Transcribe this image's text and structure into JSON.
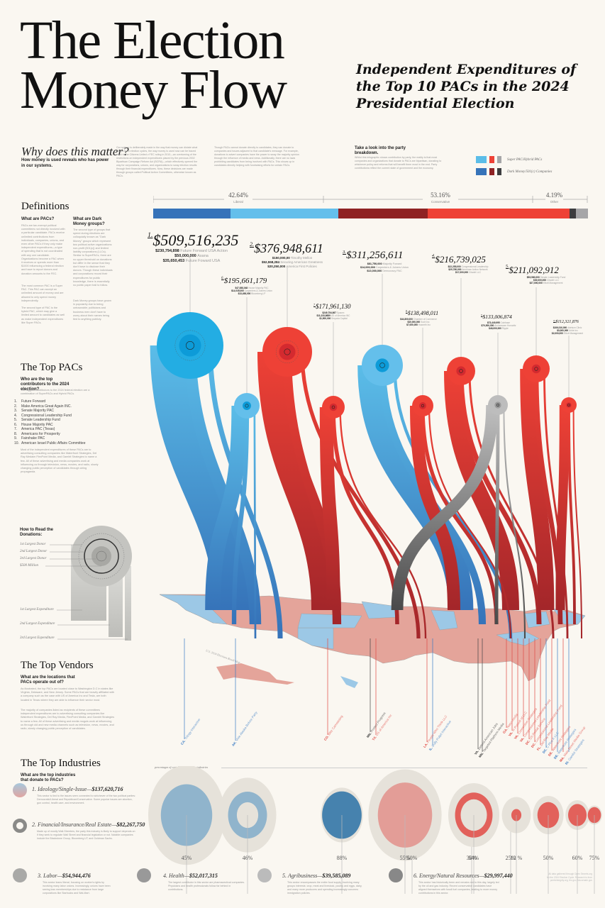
{
  "header": {
    "title": "The Election Money Flow",
    "subtitle": "Independent Expenditures of the Top 10 PACs in the 2024 Presidential Election"
  },
  "intro": {
    "heading": "Why does this matter?",
    "subheading": "How money is used reveals who has power in our systems.",
    "para1": "Our system is deliberately made in the way that money can dictate what happens. In election cycles, the way money is used now can be traced back to the Citizens United v FEC ruling in 2010—an overturning of the restrictions on independent expenditures placed by the previous 2002 Bipartisan Campaign Reform Act (BCRA)—which effectively opened the way for corporations, unions, and organizations to sway election results through their financial expenditures. Now, these decisions are made through groups called Political Action Committees, otherwise known as PACs.",
    "para2": "Though PACs cannot donate directly to candidates, they can donate to companies and issues adjacent to that candidate's message. For example, donations to advert companies have the power to sway the majority opinion through the influence of media and news. Additionally, there are no laws prohibiting candidates from being involved with PACs. This shows up in candidates directly helping with fundraising efforts for certain PACs."
  },
  "breakdown": {
    "title": "Take a look into the party breakdown.",
    "text": "Whilst this infographic shows contribution by party, the reality is that most companies and organizations that donate to PACs are bipartisan, donating to whichever policy and reforms that will benefit them most in the end. Party contributions reflect the current state of government and the economy.",
    "legend": [
      {
        "label": "Super PAC/Hybrid PACs",
        "colors": [
          "#5bbde8",
          "#ee4136",
          "#a6a6a8"
        ]
      },
      {
        "label": "Dark Money/501(c) Companies",
        "colors": [
          "#3673b9",
          "#8f2224",
          "#3d3d3f"
        ]
      }
    ]
  },
  "party_split": {
    "segments": [
      {
        "label": "Liberal",
        "percent": "42.64%",
        "value": 42.64,
        "parts": [
          {
            "color": "#3673b9",
            "share": 17.8
          },
          {
            "color": "#64bfeb",
            "share": 24.84
          }
        ]
      },
      {
        "label": "Conservative",
        "percent": "53.16%",
        "value": 53.16,
        "parts": [
          {
            "color": "#8f2224",
            "share": 20.5
          },
          {
            "color": "#ee4136",
            "share": 32.66
          }
        ]
      },
      {
        "label": "Other",
        "percent": "4.19%",
        "value": 4.19,
        "parts": [
          {
            "color": "#3d3d3f",
            "share": 1.4
          },
          {
            "color": "#a6a6a8",
            "share": 2.79
          }
        ]
      }
    ]
  },
  "definitions": {
    "title": "Definitions",
    "pacs_q": "What are PACs?",
    "pacs_text1": "PACs are tax-exempt political committees not directly involved with a particular candidate. PACs receive unlimited contributions from individuals, companies, unions, and even other PACs if they only make independent expenditures—a type of spending that is not coordinated with any one candidate. Organizations become a PAC when it receives or spends more than $1000 influencing a federal election and have to report donors and donation amounts to the FEC.",
    "pacs_text2": "The most common PAC is a Super PAC. This PAC can accept an unlimited amount of money and are allowed to only spend money independently.",
    "pacs_text3": "The second type of PAC is the hybrid PAC, which may give a limited amount to candidates as well as make independent expenditures like Super PACs.",
    "dark_q": "What are Dark Money groups?",
    "dark_text1": "The second type of groups that spend during elections are colloquially known as \"Dark Money\" groups which represent two political active organizations: non-profit (501(c)) and limited liability corporations (LLCs). Similar to SuperPACs, there are no upper threshold on donations but differ in the sense that they don't have to disclose their donors. Though these individuals and corporations record their expenditures for public knowledge, there is essentially no public paper trail to follow.",
    "dark_text2": "Dark Money groups have grown in popularity due to being untraceable; politicians and business men don't have to worry about their names being tied to anything publicly."
  },
  "top_pacs": {
    "title": "The Top PACs",
    "question": "Who are the top contributors to the 2024 election?",
    "intro": "The biggest contributors to the 2024 federal election are a combination of SuperPACs and Hybrid PACs.",
    "list": [
      "Future Forward",
      "Make America Great Again INC.",
      "Senate Majority PAC",
      "Congressional Leadership Fund",
      "Senate Leadership Fund",
      "House Majority PAC",
      "America PAC (Texas)",
      "Americans for Prosperity",
      "Fairshake PAC",
      "American Israel Public Affairs Committee"
    ],
    "outro": "Most of the independent expenditures of these PACs are to advertising consulting companies like Waterfront Strategies, Del Ray Medaim FlexPoint Media, and Gambit Strategies to name a few. All of these advertising and media companies work at influencing us through television, news, movies, and radio, slowly changing public perception of candidates through airing propaganda."
  },
  "how_to_read": {
    "title": "How to Read the Donations:",
    "labels": [
      "1st Largest Donor",
      "2nd Largest Donor",
      "3rd Largest Donor",
      "$500 Million",
      "1st Largest Expenditure",
      "2nd Largest Expenditure",
      "3rd Largest Expenditure"
    ]
  },
  "pacs": [
    {
      "rank": "1.",
      "total": "$509,516,235",
      "color": "#23ade3",
      "donors": [
        {
          "amt": "$230,794,898",
          "name": "Future Forward USA Action"
        },
        {
          "amt": "$50,000,000",
          "name": "Asana"
        },
        {
          "amt": "$35,650,453",
          "name": "Future Foward USA"
        }
      ]
    },
    {
      "rank": "2.",
      "total": "$376,948,611",
      "color": "#ee4136",
      "donors": [
        {
          "amt": "$150,000,00",
          "name": "Timothy Mellon"
        },
        {
          "amt": "$52,558,284",
          "name": "Securing American Greatness"
        },
        {
          "amt": "$20,250,000",
          "name": "America First Policies"
        }
      ]
    },
    {
      "rank": "3.",
      "total": "$311,256,611",
      "color": "#64bfeb",
      "donors": [
        {
          "amt": "$81,750,000",
          "name": "Majority Foward"
        },
        {
          "amt": "$14,000,000",
          "name": "Carpenters & Joiners Union"
        },
        {
          "amt": "$13,000,000",
          "name": "Democracy PAC"
        }
      ]
    },
    {
      "rank": "4.",
      "total": "$216,739,025",
      "color": "#ee4136",
      "donors": [
        {
          "amt": "$22,255,000",
          "name": "Congressional Leadership"
        },
        {
          "amt": "$20,780,000",
          "name": "American Action Network"
        },
        {
          "amt": "$17,000,000",
          "name": "Citadel LLC"
        }
      ]
    },
    {
      "rank": "5.",
      "total": "$211,092,912",
      "color": "#ee4136",
      "donors": [
        {
          "amt": "$53,580,000",
          "name": "Senate Leadership Fund"
        },
        {
          "amt": "$30,000,000",
          "name": "Citadel LLC"
        },
        {
          "amt": "$27,000,000",
          "name": "Elliott Management"
        }
      ]
    },
    {
      "rank": "6.",
      "total": "$195,661,179",
      "color": "#64bfeb",
      "donors": [
        {
          "amt": "$47,088,048",
          "name": "House Majority PAC"
        },
        {
          "amt": "$14,035,000",
          "name": "Carpenters & Joiners Union"
        },
        {
          "amt": "$13,458,000",
          "name": "Bloomberg LP"
        }
      ]
    },
    {
      "rank": "7.",
      "total": "$171,961,130",
      "color": "#ee4136",
      "donors": [
        {
          "amt": "$249,754,987",
          "name": "Spacex"
        },
        {
          "amt": "$11,233,8689",
          "name": "US of America INC"
        },
        {
          "amt": "$1,500,000",
          "name": "Sequoia Capital"
        }
      ]
    },
    {
      "rank": "8.",
      "total": "$138,498,011",
      "color": "#ee4136",
      "donors": [
        {
          "amt": "$44,800,000",
          "name": "Chamber of Commerce"
        },
        {
          "amt": "$40,000,000",
          "name": "Koch Inc"
        },
        {
          "amt": "$7,000,000",
          "name": "Haworth Inc"
        }
      ]
    },
    {
      "rank": "9.",
      "total": "$133,006,874",
      "color": "#a6a6a8",
      "donors": [
        {
          "amt": "$73,449,995",
          "name": "Coinbase"
        },
        {
          "amt": "$70,500,000",
          "name": "Andreessen Horowitz"
        },
        {
          "amt": "$48,000,000",
          "name": "Ripple"
        }
      ]
    },
    {
      "rank": "10.",
      "total": "$112,321,876",
      "color": "#ee4136",
      "donors": [
        {
          "amt": "$106,010,000",
          "name": "Adelson Clinic"
        },
        {
          "amt": "$3,000,000",
          "name": "Uride Inc"
        },
        {
          "amt": "$2,000,000",
          "name": "Elliott Management"
        }
      ]
    }
  ],
  "map": {
    "caption": "U.S. 2024 Elections Result Map"
  },
  "vendors_section": {
    "title": "The Top Vendors",
    "question": "What are the locations that PACs operate out of?",
    "text1": "As illustrated, the top PACs are located close to Washington D.C in states like Virginia, Delaware, and New Jersey. Some PACs that are heavily affiliated with a company such as the case with US of America Inc and Tesla, are both located in Texas where they are able to influence their sector most.",
    "text2": "The majority of companies listed as recipients of these committees independent expenditures are to advertising consulting companies like Waterfront Strategies, Del Ray Media, FlexPoint Media, and Gambit Strategies to name a few. All of these advertising and media moguls work at influencing us through old and new media channels such as television, news, movies, and radio, slowly changing public perception of candidates."
  },
  "vendors": [
    {
      "state": "CA.",
      "name": "Trilogy Interactive",
      "color": "#3a7cc4"
    },
    {
      "state": "AK.",
      "name": "Vote Alaska Before Party",
      "color": "#3a7cc4"
    },
    {
      "state": "CO.",
      "name": "Blitz Canvassing",
      "color": "#e04a44"
    },
    {
      "state": "MN.",
      "name": "Protect Progress",
      "color": "#444"
    },
    {
      "state": "TX.",
      "name": "US of America Inc",
      "color": "#e04a44"
    },
    {
      "state": "LA.",
      "name": "People Who Think LLC",
      "color": "#e04a44"
    },
    {
      "state": "IL.",
      "name": "Bully Pulpit Interactive",
      "color": "#3a7cc4"
    },
    {
      "state": "VA.",
      "name": "Defend American Jobs",
      "color": "#444"
    },
    {
      "state": "MN.",
      "name": "Targeted Platform Media",
      "color": "#444"
    },
    {
      "state": "GA.",
      "name": "Naso media",
      "color": "#e04a44"
    },
    {
      "state": "VA.",
      "name": "In Pursuit of LLC",
      "color": "#e04a44"
    },
    {
      "state": "VA.",
      "name": "Connection Strategies",
      "color": "#e04a44"
    },
    {
      "state": "VA.",
      "name": "Congressional Leadership Fund",
      "color": "#e04a44"
    },
    {
      "state": "DC.",
      "name": "US Postal Service",
      "color": "#e04a44"
    },
    {
      "state": "DC.",
      "name": "Congressional Leadership Fund",
      "color": "#e04a44"
    },
    {
      "state": "FL.",
      "name": "Del Ray Media",
      "color": "#e04a44"
    },
    {
      "state": "DC.",
      "name": "C Plus K LLC",
      "color": "#3a7cc4"
    },
    {
      "state": "DE.",
      "name": "Waterfront Strategies",
      "color": "#e04a44"
    },
    {
      "state": "DE.",
      "name": "Waterfront Strategies",
      "color": "#3a7cc4"
    },
    {
      "state": "MA.",
      "name": "Main Street Media Group",
      "color": "#e04a44"
    },
    {
      "state": "RI.",
      "name": "Gambit Strategies",
      "color": "#3a7cc4"
    }
  ],
  "industries_section": {
    "title": "The Top Industries",
    "question": "What are the top industries that donate to PACs?",
    "caption": "percentages of contributions split by industries"
  },
  "industries": [
    {
      "rank": "1.",
      "name": "Ideology/Single-Issue",
      "amount": "$137,620,716",
      "text": "This sector is tied to the issues seen connected to whichever of the two political parties: Democratic/Liberal and Republican/Conservative. Some popular issues are abortion, gun control, health care, and environment."
    },
    {
      "rank": "2.",
      "name": "Financial/Insurance/Real Estate",
      "amount": "$82,267,750",
      "text": "Made up of mostly Wall-Streeters, the party this industry is likely to support depends on if they seek to regulate Wall Street and financial legislation or not. Notable companies include the Blackstone Group, Bloomberg LP, and Goldman Sachs."
    },
    {
      "rank": "3.",
      "name": "Labor",
      "amount": "$54,944,476",
      "text": "This sector leans liberal, focusing on worker's rights by involving many labor unions. Increasingly, unions have been seeing loss memberships due to resistance from large corporations like Starbucks and Wal-Mart."
    },
    {
      "rank": "4.",
      "name": "Health",
      "amount": "$52,017,315",
      "text": "The largest contributor in this sector are pharmaceutical companies. Physicians and health professionals follow far behind in contributions."
    },
    {
      "rank": "5.",
      "name": "Agribusiness",
      "amount": "$39,585,089",
      "text": "This sector encompasses the entire food supply, involving many groups interests: crop, meat and livestock, poultry and eggs, dairy, and many more producers and spending increasingly concerns immigration policies."
    },
    {
      "rank": "6.",
      "name": "Energy/Natural Resources",
      "amount": "$29,997,440",
      "text": "This sector has historically been and remains red to this day, largely led by the oil and gas industry. Recent conservative candidates have aligned themselves with fossil fuel companies, leading to more money contributions in this sector."
    }
  ],
  "chart_data": {
    "type": "bubble",
    "title": "percentages of contributions split by industries",
    "series": [
      {
        "name": "Liberal",
        "color": "#3a7cc4",
        "categories": [
          "Ideology/Single-Issue",
          "Financial/Insurance/Real Estate",
          "Labor",
          "Health",
          "Agribusiness",
          "Energy/Natural Resources"
        ],
        "values": [
          45,
          46,
          88,
          50,
          30,
          25
        ],
        "labels": [
          "45%",
          "46%",
          "88%",
          "50%",
          "30%",
          "25%"
        ]
      },
      {
        "name": "Conservative",
        "color": "#e04a44",
        "categories": [
          "Ideology/Single-Issue",
          "Financial/Insurance/Real Estate",
          "Labor",
          "Health",
          "Agribusiness",
          "Energy/Natural Resources"
        ],
        "values": [
          55,
          54,
          12,
          50,
          60,
          75
        ],
        "labels": [
          "55%",
          "54%",
          "12 %",
          "50%",
          "60%",
          "75%"
        ]
      }
    ]
  },
  "credit": "All data gathered through Open Secrets.org for the 2024 Election Cycle. Research is from publicintegrity.org, fec.gov, fda.senate.gov"
}
